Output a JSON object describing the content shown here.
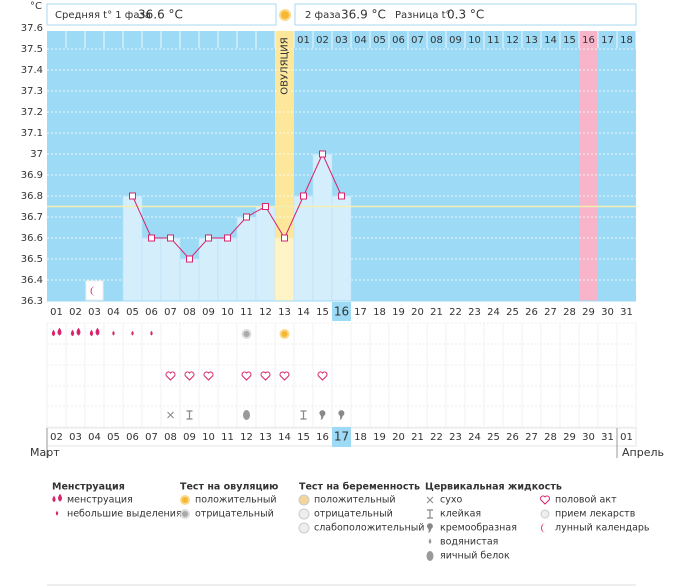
{
  "chart_data": {
    "type": "line",
    "unit_label": "°C",
    "categories": [
      "01",
      "02",
      "03",
      "04",
      "05",
      "06",
      "07",
      "08",
      "09",
      "10",
      "11",
      "12",
      "13",
      "14",
      "15",
      "16",
      "17",
      "18",
      "19",
      "20",
      "21",
      "22",
      "23",
      "24",
      "25",
      "26",
      "27",
      "28",
      "29",
      "30",
      "31"
    ],
    "values": [
      null,
      null,
      null,
      null,
      36.8,
      36.6,
      36.6,
      36.5,
      36.6,
      36.6,
      36.7,
      36.75,
      36.6,
      36.8,
      37.0,
      36.8,
      null,
      null,
      null,
      null,
      null,
      null,
      null,
      null,
      null,
      null,
      null,
      null,
      null,
      null,
      null
    ],
    "color": "#d8246c",
    "ylim": [
      36.3,
      37.6
    ],
    "yticks": [
      36.3,
      36.4,
      36.5,
      36.6,
      36.7,
      36.8,
      36.9,
      37,
      37.1,
      37.2,
      37.3,
      37.4,
      37.5,
      37.6
    ],
    "grid": true,
    "cover_line": 36.75,
    "cycle_days": [
      null,
      null,
      null,
      null,
      null,
      null,
      null,
      null,
      null,
      null,
      null,
      null,
      null,
      "01",
      "02",
      "03",
      "04",
      "05",
      "06",
      "07",
      "08",
      "09",
      "10",
      "11",
      "12",
      "13",
      "14",
      "15",
      "16",
      "17",
      "18"
    ],
    "ovulation_label": "ОВУЛЯЦИЯ",
    "ovulation_day": "13",
    "marked_day": "29",
    "today": "16",
    "dates": [
      "02",
      "03",
      "04",
      "05",
      "06",
      "07",
      "08",
      "09",
      "10",
      "11",
      "12",
      "13",
      "14",
      "15",
      "16",
      "17",
      "18",
      "19",
      "20",
      "21",
      "22",
      "23",
      "24",
      "25",
      "26",
      "27",
      "28",
      "29",
      "30",
      "31",
      "01"
    ],
    "date_colors": [
      "#d8244f",
      "#d8244f",
      "#333",
      "#333",
      "#333",
      "#333",
      "#333",
      "#d8244f",
      "#d8244f",
      "#333",
      "#333",
      "#333",
      "#333",
      "#333",
      "#d8244f",
      "#333",
      "#333",
      "#333",
      "#333",
      "#333",
      "#333",
      "#d8244f",
      "#d8244f",
      "#333",
      "#333",
      "#333",
      "#333",
      "#333",
      "#d8244f",
      "#d8244f",
      "#333"
    ],
    "months": [
      "Март",
      "Апрель"
    ]
  },
  "header": {
    "phase1": "Средняя t° 1 фаза",
    "phase1_value": "36.6 °C",
    "phase2": "2 фаза",
    "phase2_value": "36.9 °C",
    "difference": "Разница t°",
    "difference_value": "0.3 °C"
  },
  "legend": [
    {
      "title": "Менструация",
      "items": [
        {
          "label": "менструация",
          "days": [
            "01",
            "02",
            "03"
          ]
        },
        {
          "label": "небольшие выделения",
          "days": [
            "04",
            "05",
            "06"
          ]
        }
      ]
    },
    {
      "title": "Тест на овуляцию",
      "items": [
        {
          "label": "положительный",
          "days": [
            "13"
          ]
        },
        {
          "label": "отрицательный",
          "days": [
            "11"
          ]
        }
      ]
    },
    {
      "title": "Тест на беременность",
      "items": [
        {
          "label": "положительный",
          "days": []
        },
        {
          "label": "отрицательный",
          "days": []
        },
        {
          "label": "слабоположительный",
          "days": []
        }
      ]
    },
    {
      "title": "Цервикальная жидкость",
      "items": [
        {
          "label": "сухо",
          "days": [
            "07"
          ]
        },
        {
          "label": "клейкая",
          "days": [
            "08",
            "14"
          ]
        },
        {
          "label": "кремообразная",
          "days": [
            "15",
            "16"
          ]
        },
        {
          "label": "водянистая",
          "days": []
        },
        {
          "label": "яичный белок",
          "days": [
            "11"
          ]
        }
      ]
    },
    {
      "title": null,
      "items": [
        {
          "label": "половой акт",
          "days": [
            "07",
            "08",
            "09",
            "11",
            "12",
            "13",
            "15"
          ]
        },
        {
          "label": "прием лекарств",
          "days": []
        },
        {
          "label": "лунный календарь",
          "days": [
            "03"
          ]
        }
      ]
    }
  ]
}
